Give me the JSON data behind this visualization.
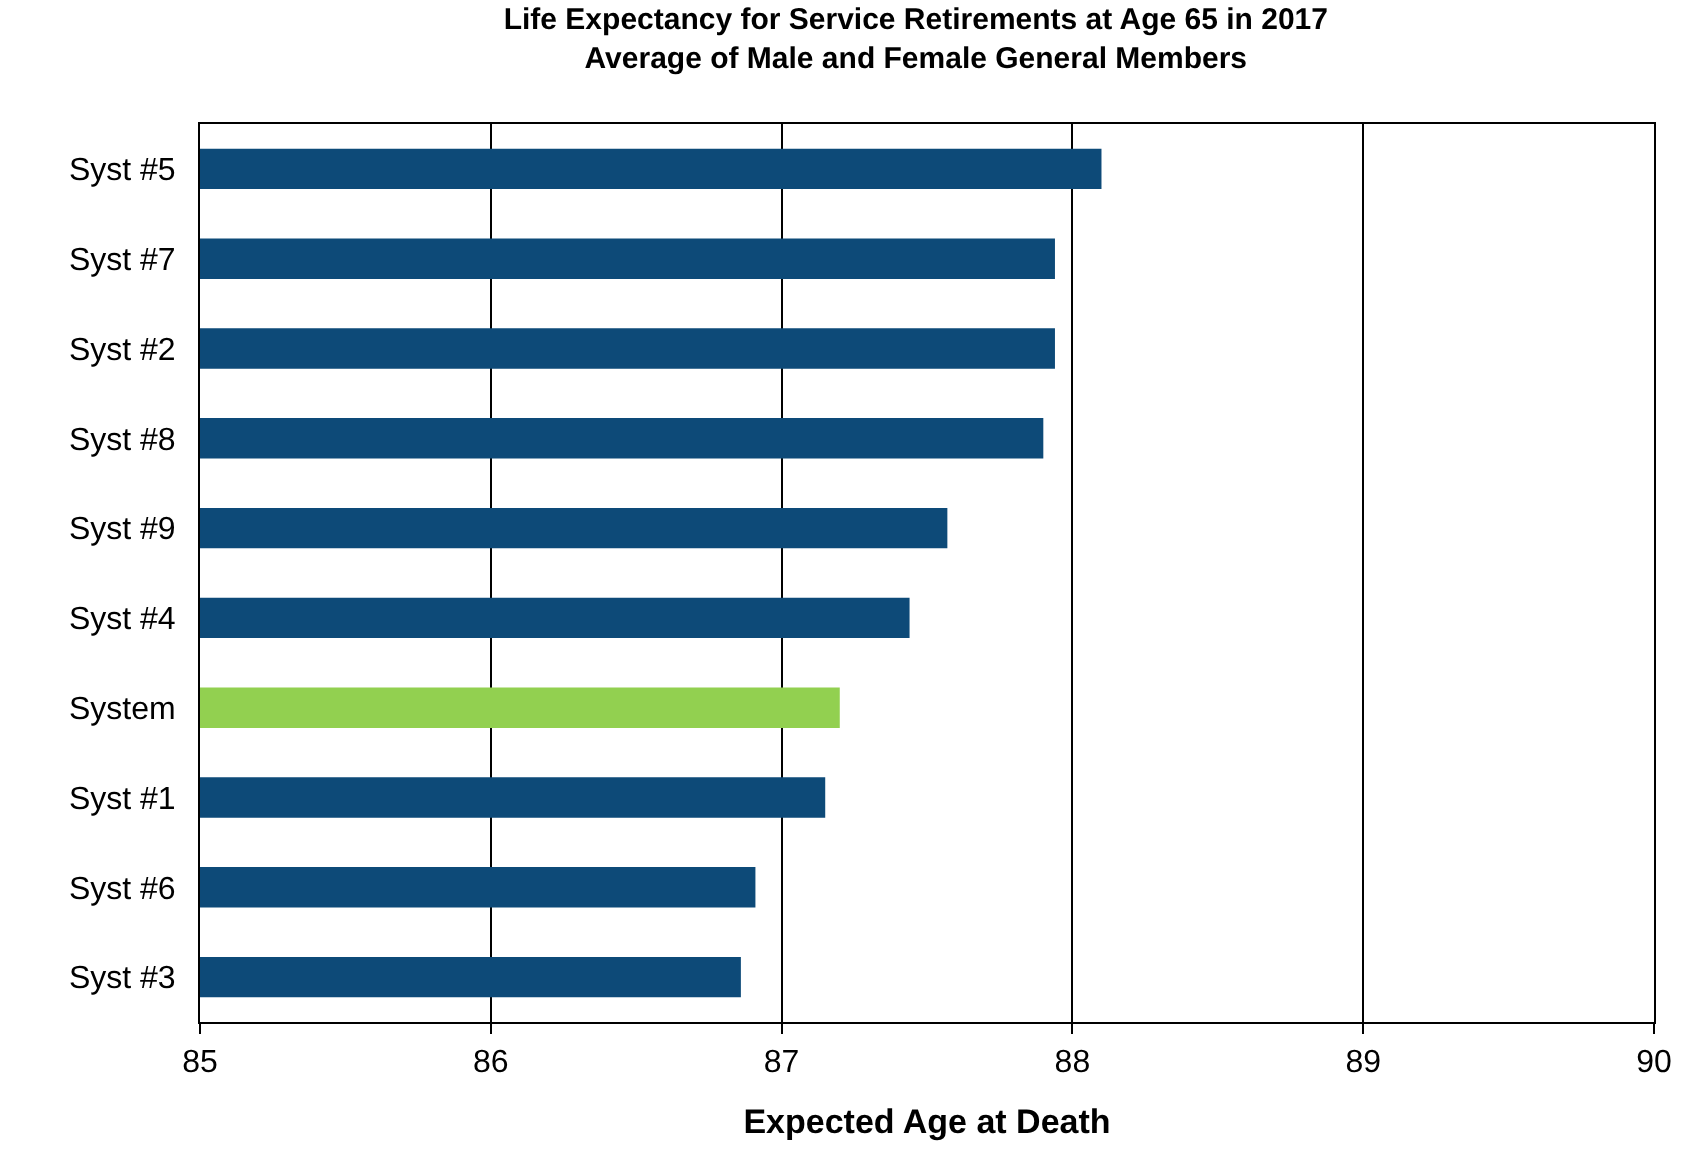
{
  "chart_data": {
    "type": "bar",
    "orientation": "horizontal",
    "title": "Life Expectancy for Service Retirements at Age 65 in 2017",
    "subtitle": "Average of Male and Female General Members",
    "xlabel": "Expected Age at Death",
    "categories": [
      "Syst #5",
      "Syst #7",
      "Syst #2",
      "Syst #8",
      "Syst #9",
      "Syst #4",
      "System",
      "Syst #1",
      "Syst #6",
      "Syst #3"
    ],
    "values": [
      88.1,
      87.94,
      87.94,
      87.9,
      87.57,
      87.44,
      87.2,
      87.15,
      86.91,
      86.86
    ],
    "colors": [
      "#0d4a78",
      "#0d4a78",
      "#0d4a78",
      "#0d4a78",
      "#0d4a78",
      "#0d4a78",
      "#92d050",
      "#0d4a78",
      "#0d4a78",
      "#0d4a78"
    ],
    "xlim": [
      85,
      90
    ],
    "xticks": [
      85,
      86,
      87,
      88,
      89,
      90
    ],
    "grid": "x"
  }
}
